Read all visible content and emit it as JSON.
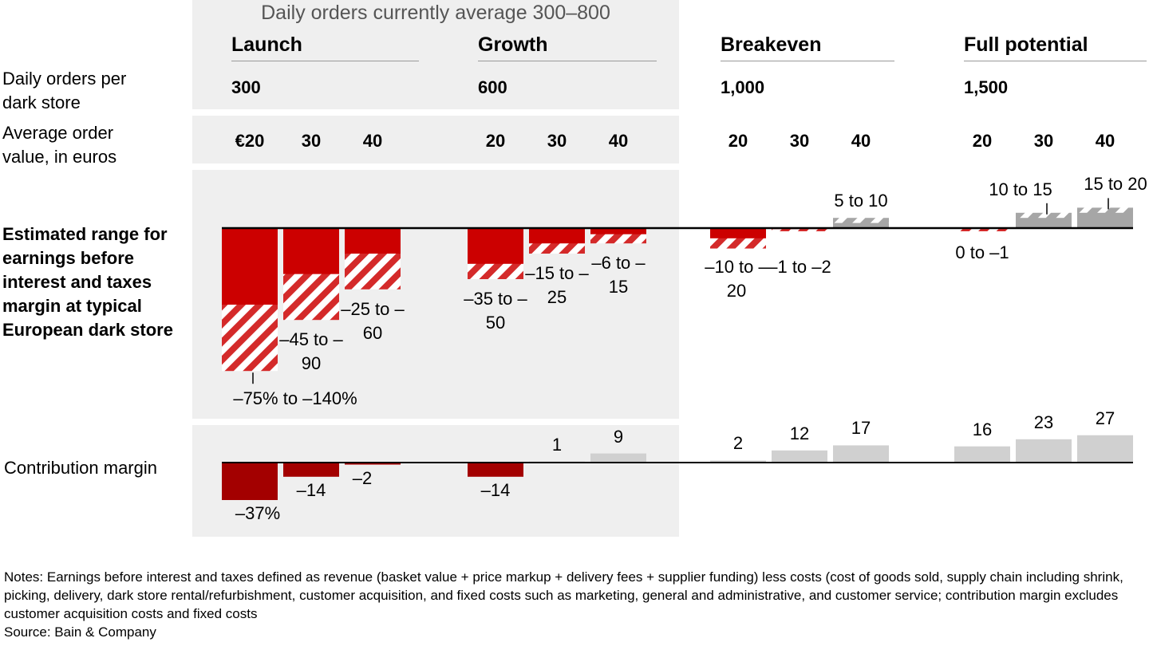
{
  "header": "Daily orders currently average 300–800",
  "stages": [
    {
      "name": "Launch",
      "orders": "300",
      "aov": [
        "€20",
        "30",
        "40"
      ]
    },
    {
      "name": "Growth",
      "orders": "600",
      "aov": [
        "20",
        "30",
        "40"
      ]
    },
    {
      "name": "Breakeven",
      "orders": "1,000",
      "aov": [
        "20",
        "30",
        "40"
      ]
    },
    {
      "name": "Full potential",
      "orders": "1,500",
      "aov": [
        "20",
        "30",
        "40"
      ]
    }
  ],
  "row_labels": {
    "orders": "Daily orders per dark store",
    "aov": "Average order value, in euros",
    "ebit": "Estimated range for earnings before interest and taxes margin at typical European dark store",
    "cm": "Contribution margin"
  },
  "colors": {
    "neg_solid": "#cc0000",
    "neg_dark": "#a30000",
    "pos_gray": "#a6a6a6",
    "cm_gray": "#d0d0d0",
    "panel": "#efefef"
  },
  "chart_data": [
    {
      "type": "bar",
      "title": "Estimated EBIT margin range (%)",
      "categories": [
        "Launch €20",
        "Launch €30",
        "Launch €40",
        "Growth €20",
        "Growth €30",
        "Growth €40",
        "Breakeven €20",
        "Breakeven €30",
        "Breakeven €40",
        "Full potential €20",
        "Full potential €30",
        "Full potential €40"
      ],
      "ranges": [
        [
          -75,
          -140
        ],
        [
          -45,
          -90
        ],
        [
          -25,
          -60
        ],
        [
          -35,
          -50
        ],
        [
          -15,
          -25
        ],
        [
          -6,
          -15
        ],
        [
          -10,
          -20
        ],
        [
          -1,
          -2
        ],
        [
          5,
          10
        ],
        [
          0,
          -1
        ],
        [
          10,
          15
        ],
        [
          15,
          20
        ]
      ],
      "labels": [
        "–75% to –140%",
        "–45 to –90",
        "–25 to –60",
        "–35 to –50",
        "–15 to –25",
        "–6 to –15",
        "–10 to –20",
        "–1 to –2",
        "5 to 10",
        "0 to –1",
        "10 to 15",
        "15 to 20"
      ]
    },
    {
      "type": "bar",
      "title": "Contribution margin (%)",
      "categories": [
        "Launch €20",
        "Launch €30",
        "Launch €40",
        "Growth €20",
        "Growth €30",
        "Growth €40",
        "Breakeven €20",
        "Breakeven €30",
        "Breakeven €40",
        "Full potential €20",
        "Full potential €30",
        "Full potential €40"
      ],
      "values": [
        -37,
        -14,
        -2,
        -14,
        1,
        9,
        2,
        12,
        17,
        16,
        23,
        27
      ],
      "labels": [
        "–37%",
        "–14",
        "–2",
        "–14",
        "1",
        "9",
        "2",
        "12",
        "17",
        "16",
        "23",
        "27"
      ]
    }
  ],
  "notes": "Notes: Earnings before interest and taxes defined as revenue (basket value + price markup + delivery fees + supplier funding) less costs (cost of goods sold, supply chain including shrink, picking, delivery, dark store rental/refurbishment, customer acquisition, and fixed costs such as marketing, general and administrative, and customer service; contribution margin excludes customer acquisition costs and fixed costs",
  "source": "Source: Bain & Company"
}
